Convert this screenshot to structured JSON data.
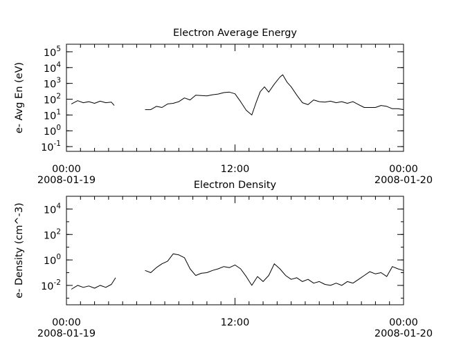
{
  "chart_data": [
    {
      "type": "line",
      "title": "Electron Average Energy",
      "ylabel": "e- Avg En (eV)",
      "yscale": "log",
      "ylim": [
        0.05,
        300000
      ],
      "xlim": [
        0,
        24
      ],
      "x_unit": "hours since 2008-01-19 00:00",
      "xticks": [
        {
          "hour": 0,
          "time": "00:00",
          "date": "2008-01-19"
        },
        {
          "hour": 12,
          "time": "12:00",
          "date": ""
        },
        {
          "hour": 24,
          "time": "00:00",
          "date": "2008-01-20"
        }
      ],
      "yticks": [
        {
          "value": 0.1,
          "base": "10",
          "exp": "-1"
        },
        {
          "value": 1,
          "base": "10",
          "exp": "0"
        },
        {
          "value": 10,
          "base": "10",
          "exp": "1"
        },
        {
          "value": 100,
          "base": "10",
          "exp": "2"
        },
        {
          "value": 1000,
          "base": "10",
          "exp": "3"
        },
        {
          "value": 10000,
          "base": "10",
          "exp": "4"
        },
        {
          "value": 100000,
          "base": "10",
          "exp": "5"
        }
      ],
      "series": [
        {
          "name": "",
          "color": "#000000",
          "segments": [
            [
              [
                0.35,
                50
              ],
              [
                0.8,
                80
              ],
              [
                1.2,
                60
              ],
              [
                1.6,
                70
              ],
              [
                2.0,
                55
              ],
              [
                2.4,
                75
              ],
              [
                2.8,
                60
              ],
              [
                3.2,
                65
              ],
              [
                3.4,
                40
              ]
            ],
            [
              [
                5.6,
                22
              ],
              [
                6.0,
                22
              ],
              [
                6.4,
                35
              ],
              [
                6.8,
                30
              ],
              [
                7.2,
                50
              ],
              [
                7.6,
                55
              ],
              [
                8.0,
                70
              ],
              [
                8.4,
                120
              ],
              [
                8.8,
                90
              ],
              [
                9.2,
                180
              ],
              [
                9.6,
                170
              ],
              [
                10.0,
                160
              ],
              [
                10.4,
                190
              ],
              [
                10.8,
                210
              ],
              [
                11.2,
                260
              ],
              [
                11.6,
                280
              ],
              [
                12.0,
                220
              ],
              [
                12.4,
                70
              ],
              [
                12.8,
                20
              ],
              [
                13.2,
                10
              ],
              [
                13.5,
                60
              ],
              [
                13.8,
                300
              ],
              [
                14.1,
                600
              ],
              [
                14.4,
                280
              ],
              [
                14.8,
                900
              ],
              [
                15.2,
                2500
              ],
              [
                15.4,
                3500
              ],
              [
                15.7,
                1200
              ],
              [
                16.0,
                600
              ],
              [
                16.4,
                180
              ],
              [
                16.8,
                60
              ],
              [
                17.2,
                45
              ],
              [
                17.6,
                90
              ],
              [
                18.0,
                70
              ],
              [
                18.4,
                65
              ],
              [
                18.8,
                75
              ],
              [
                19.2,
                60
              ],
              [
                19.6,
                70
              ],
              [
                20.0,
                55
              ],
              [
                20.4,
                70
              ],
              [
                20.8,
                45
              ],
              [
                21.2,
                30
              ],
              [
                21.6,
                30
              ],
              [
                22.0,
                30
              ],
              [
                22.4,
                40
              ],
              [
                22.8,
                35
              ],
              [
                23.2,
                25
              ],
              [
                23.6,
                25
              ],
              [
                24.0,
                22
              ]
            ]
          ]
        }
      ]
    },
    {
      "type": "line",
      "title": "Electron Density",
      "ylabel": "e- Density (cm^-3)",
      "yscale": "log",
      "ylim": [
        0.0003,
        100000
      ],
      "xlim": [
        0,
        24
      ],
      "x_unit": "hours since 2008-01-19 00:00",
      "xticks": [
        {
          "hour": 0,
          "time": "00:00",
          "date": "2008-01-19"
        },
        {
          "hour": 12,
          "time": "12:00",
          "date": ""
        },
        {
          "hour": 24,
          "time": "00:00",
          "date": "2008-01-20"
        }
      ],
      "yticks": [
        {
          "value": 0.01,
          "base": "10",
          "exp": "-2"
        },
        {
          "value": 1,
          "base": "10",
          "exp": "0"
        },
        {
          "value": 100,
          "base": "10",
          "exp": "2"
        },
        {
          "value": 10000,
          "base": "10",
          "exp": "4"
        }
      ],
      "series": [
        {
          "name": "",
          "color": "#000000",
          "segments": [
            [
              [
                0.35,
                0.005
              ],
              [
                0.8,
                0.01
              ],
              [
                1.2,
                0.007
              ],
              [
                1.6,
                0.009
              ],
              [
                2.0,
                0.006
              ],
              [
                2.4,
                0.01
              ],
              [
                2.8,
                0.007
              ],
              [
                3.2,
                0.012
              ],
              [
                3.5,
                0.04
              ]
            ],
            [
              [
                5.6,
                0.15
              ],
              [
                6.0,
                0.1
              ],
              [
                6.4,
                0.25
              ],
              [
                6.8,
                0.5
              ],
              [
                7.2,
                0.8
              ],
              [
                7.6,
                3.0
              ],
              [
                8.0,
                2.5
              ],
              [
                8.4,
                1.5
              ],
              [
                8.8,
                0.2
              ],
              [
                9.2,
                0.06
              ],
              [
                9.6,
                0.09
              ],
              [
                10.0,
                0.1
              ],
              [
                10.4,
                0.15
              ],
              [
                10.8,
                0.2
              ],
              [
                11.2,
                0.3
              ],
              [
                11.6,
                0.25
              ],
              [
                12.0,
                0.4
              ],
              [
                12.4,
                0.2
              ],
              [
                12.8,
                0.05
              ],
              [
                13.2,
                0.01
              ],
              [
                13.6,
                0.05
              ],
              [
                14.0,
                0.02
              ],
              [
                14.4,
                0.06
              ],
              [
                14.8,
                0.5
              ],
              [
                15.2,
                0.2
              ],
              [
                15.6,
                0.06
              ],
              [
                16.0,
                0.03
              ],
              [
                16.4,
                0.04
              ],
              [
                16.8,
                0.02
              ],
              [
                17.2,
                0.03
              ],
              [
                17.6,
                0.015
              ],
              [
                18.0,
                0.02
              ],
              [
                18.4,
                0.012
              ],
              [
                18.8,
                0.01
              ],
              [
                19.2,
                0.015
              ],
              [
                19.6,
                0.01
              ],
              [
                20.0,
                0.02
              ],
              [
                20.4,
                0.015
              ],
              [
                20.8,
                0.03
              ],
              [
                21.2,
                0.06
              ],
              [
                21.6,
                0.12
              ],
              [
                22.0,
                0.08
              ],
              [
                22.4,
                0.1
              ],
              [
                22.8,
                0.05
              ],
              [
                23.2,
                0.3
              ],
              [
                23.6,
                0.2
              ],
              [
                24.0,
                0.15
              ]
            ]
          ]
        }
      ]
    }
  ]
}
